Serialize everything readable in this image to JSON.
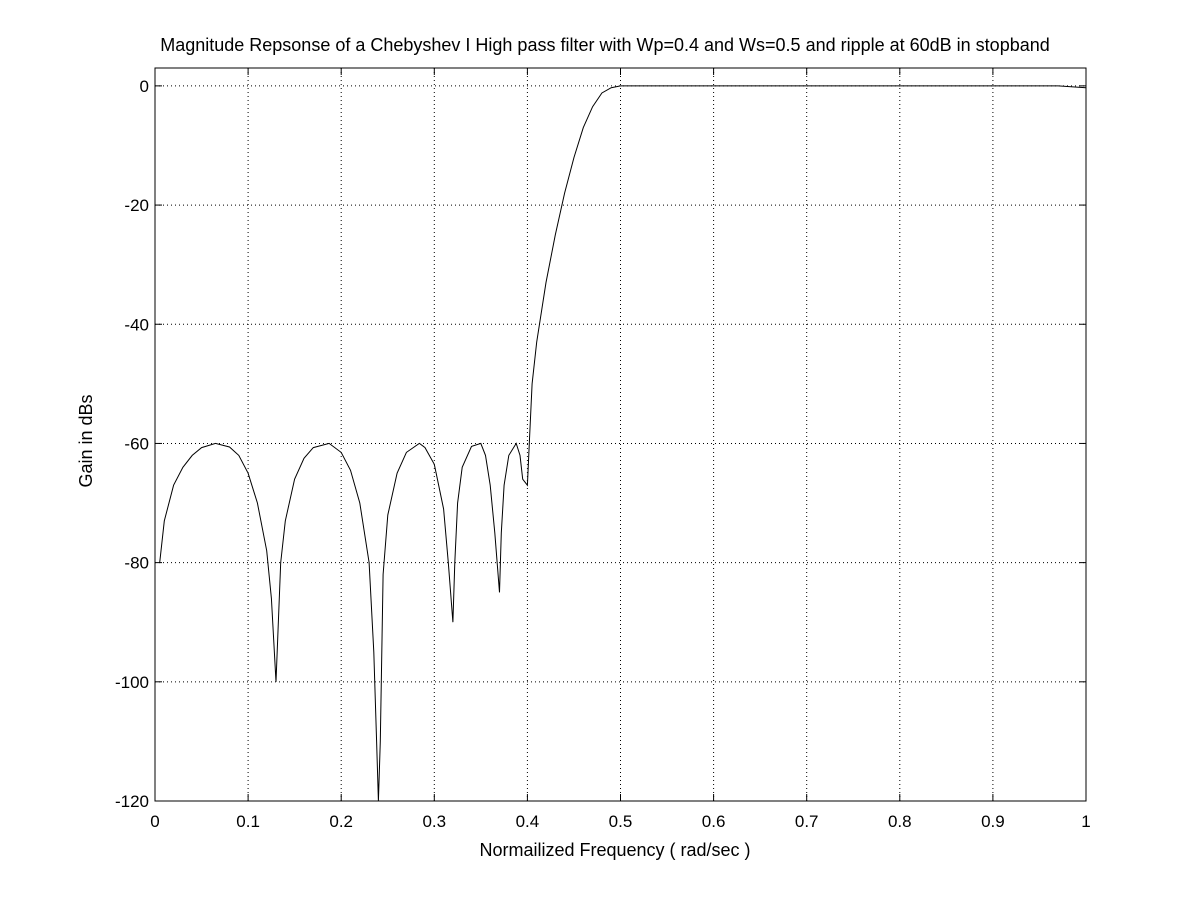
{
  "chart_data": {
    "type": "line",
    "title": "Magnitude Repsonse of a Chebyshev I High pass filter with Wp=0.4 and Ws=0.5 and ripple at 60dB in stopband",
    "xlabel": "Normailized Frequency  ( rad/sec )",
    "ylabel": "Gain in dBs",
    "xlim": [
      0,
      1
    ],
    "ylim": [
      -120,
      3
    ],
    "grid": true,
    "xticks": [
      0,
      0.1,
      0.2,
      0.3,
      0.4,
      0.5,
      0.6,
      0.7,
      0.8,
      0.9,
      1
    ],
    "xtick_labels": [
      "0",
      "0.1",
      "0.2",
      "0.3",
      "0.4",
      "0.5",
      "0.6",
      "0.7",
      "0.8",
      "0.9",
      "1"
    ],
    "yticks": [
      0,
      -20,
      -40,
      -60,
      -80,
      -100,
      -120
    ],
    "ytick_labels": [
      "0",
      "-20",
      "-40",
      "-60",
      "-80",
      "-100",
      "-120"
    ],
    "series": [
      {
        "x": [
          0.005,
          0.01,
          0.02,
          0.03,
          0.04,
          0.05,
          0.065,
          0.08,
          0.09,
          0.1,
          0.11,
          0.12,
          0.125,
          0.13,
          0.135,
          0.14,
          0.15,
          0.16,
          0.17,
          0.187,
          0.2,
          0.21,
          0.22,
          0.23,
          0.235,
          0.238,
          0.24,
          0.242,
          0.245,
          0.25,
          0.26,
          0.27,
          0.284,
          0.29,
          0.3,
          0.31,
          0.315,
          0.32,
          0.322,
          0.325,
          0.33,
          0.34,
          0.35,
          0.355,
          0.36,
          0.365,
          0.37,
          0.372,
          0.375,
          0.38,
          0.388,
          0.392,
          0.395,
          0.4,
          0.402,
          0.405,
          0.41,
          0.42,
          0.43,
          0.44,
          0.45,
          0.46,
          0.47,
          0.48,
          0.49,
          0.5,
          0.55,
          0.6,
          0.7,
          0.8,
          0.9,
          0.97,
          1.0
        ],
        "y": [
          -80,
          -73,
          -67,
          -64,
          -62,
          -60.7,
          -60,
          -60.6,
          -62,
          -65,
          -70,
          -78,
          -86,
          -100,
          -80,
          -73,
          -66,
          -62.5,
          -60.7,
          -60,
          -61.5,
          -64.5,
          -70,
          -80,
          -95,
          -110,
          -120,
          -110,
          -82,
          -72,
          -65,
          -61.5,
          -60,
          -60.7,
          -63.5,
          -71,
          -80,
          -90,
          -80,
          -70,
          -64,
          -60.5,
          -60,
          -62,
          -67,
          -75,
          -85,
          -75,
          -67,
          -62,
          -60,
          -62,
          -66,
          -67,
          -60,
          -50,
          -43,
          -33,
          -25,
          -18,
          -12,
          -7,
          -3.5,
          -1.2,
          -0.3,
          0,
          0,
          0,
          0,
          0,
          0,
          0,
          -0.3
        ]
      }
    ]
  }
}
